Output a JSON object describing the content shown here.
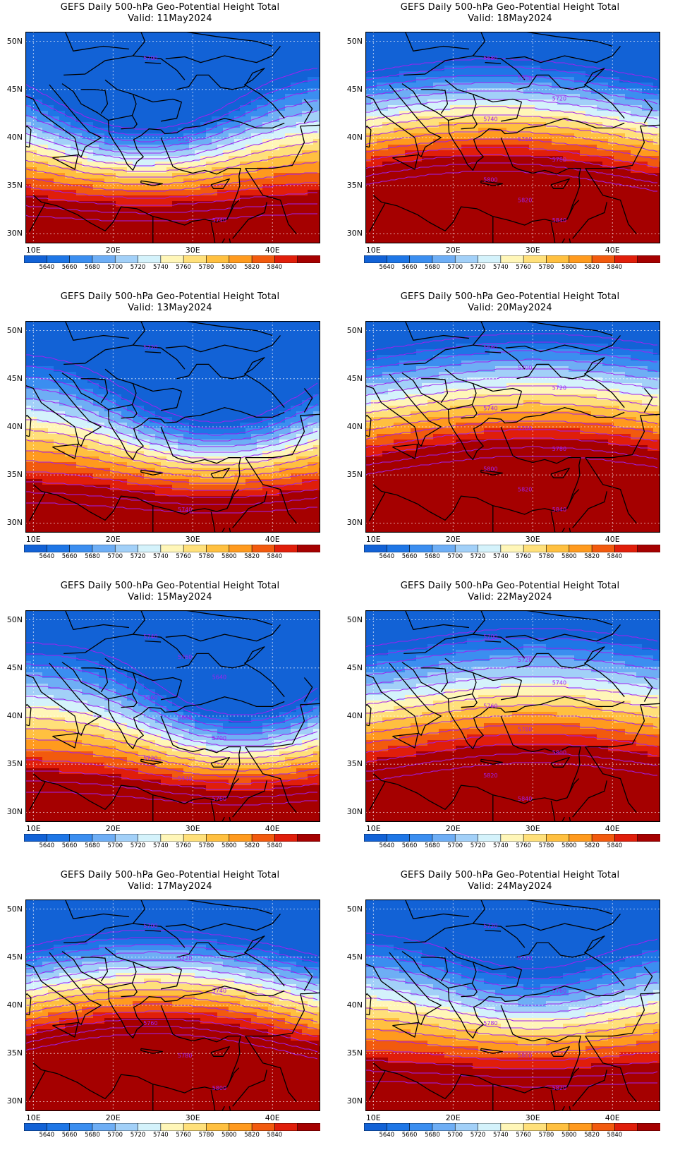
{
  "title_line1": "GEFS Daily 500-hPa Geo-Potential Height Total",
  "valid_prefix": "Valid:",
  "panels": [
    {
      "date": "11May2024",
      "col": 0,
      "row": 0,
      "regime": "trough",
      "trough_center": [
        24,
        45
      ],
      "labels": [
        "5700",
        "5720",
        "5740"
      ]
    },
    {
      "date": "18May2024",
      "col": 1,
      "row": 0,
      "regime": "ridge-zonal",
      "labels": [
        "5680",
        "5700",
        "5720",
        "5740",
        "5760",
        "5780",
        "5800",
        "5820",
        "5840"
      ]
    },
    {
      "date": "13May2024",
      "col": 0,
      "row": 1,
      "regime": "trough",
      "trough_center": [
        33,
        44
      ],
      "labels": [
        "5720",
        "5740"
      ]
    },
    {
      "date": "20May2024",
      "col": 1,
      "row": 1,
      "regime": "zonal",
      "labels": [
        "5680",
        "5700",
        "5720",
        "5740",
        "5760",
        "5780",
        "5800",
        "5820",
        "5840"
      ]
    },
    {
      "date": "15May2024",
      "col": 0,
      "row": 2,
      "regime": "trough",
      "trough_center": [
        36,
        43
      ],
      "labels": [
        "5740",
        "5760",
        "5640",
        "5660",
        "5680",
        "5700",
        "5720",
        "5740",
        "5760"
      ]
    },
    {
      "date": "22May2024",
      "col": 1,
      "row": 2,
      "regime": "zonal-weak",
      "labels": [
        "5700",
        "5720",
        "5740",
        "5760",
        "5780",
        "5800",
        "5820",
        "5840"
      ]
    },
    {
      "date": "17May2024",
      "col": 0,
      "row": 3,
      "regime": "ridge",
      "labels": [
        "5700",
        "5720",
        "5740",
        "5760",
        "5780",
        "5800"
      ]
    },
    {
      "date": "24May2024",
      "col": 1,
      "row": 3,
      "regime": "weak-trough",
      "labels": [
        "5720",
        "5740",
        "5760",
        "5780",
        "5800",
        "5820"
      ]
    }
  ],
  "lat_ticks": [
    "50N",
    "45N",
    "40N",
    "35N",
    "30N"
  ],
  "lon_ticks": [
    "10E",
    "20E",
    "30E",
    "40E"
  ],
  "colorbar": {
    "labels": [
      "5640",
      "5660",
      "5680",
      "5700",
      "5720",
      "5740",
      "5760",
      "5780",
      "5800",
      "5820",
      "5840"
    ],
    "colors": [
      "#1262d6",
      "#1e76e6",
      "#3b8ef0",
      "#6eaef5",
      "#a2d0f8",
      "#d4f2fb",
      "#fff6b8",
      "#ffe07a",
      "#ffc040",
      "#ff9a1e",
      "#f25a0e",
      "#e01e0a",
      "#a50000"
    ]
  },
  "contour_color": "#a020f0",
  "coast_color": "#000000"
}
